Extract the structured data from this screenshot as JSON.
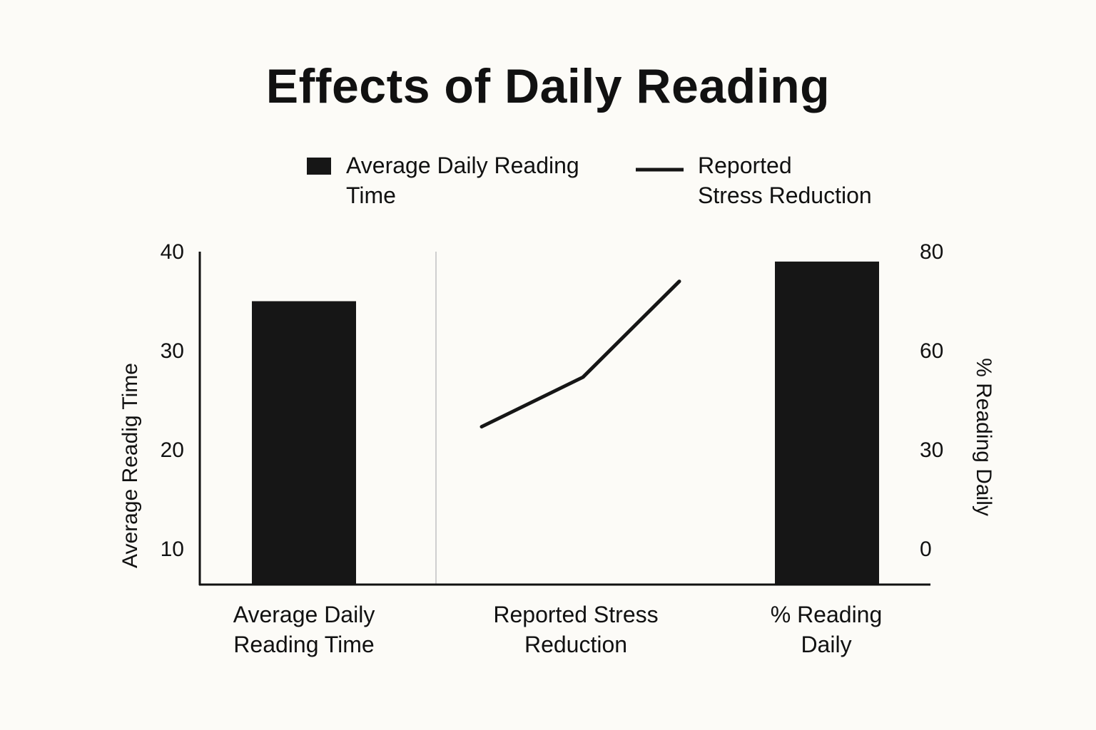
{
  "chart_data": {
    "type": "bar+line",
    "title": "Effects of Daily Reading",
    "legend": [
      {
        "label": "Average Daily Reading Time",
        "line1": "Average Daily Reading",
        "line2": "Time",
        "mark": "bar"
      },
      {
        "label": "Reported Stress Reduction",
        "line1": "Reported",
        "line2": "Stress Reduction",
        "mark": "line"
      }
    ],
    "legend_placement": "top-center",
    "categories": [
      {
        "line1": "Average Daily",
        "line2": "Reading Time"
      },
      {
        "line1": "Reported Stress",
        "line2": "Reduction"
      },
      {
        "line1": "% Reading",
        "line2": "Daily"
      }
    ],
    "left_axis": {
      "label": "Average Readig Time",
      "ticks": [
        "40",
        "30",
        "20",
        "10"
      ],
      "tick_values": [
        40,
        30,
        20,
        10
      ]
    },
    "right_axis": {
      "label": "% Reading Daily",
      "ticks": [
        "80",
        "60",
        "30",
        "0"
      ],
      "tick_values": [
        80,
        60,
        30,
        0
      ]
    },
    "bars": [
      {
        "category": "Average Daily Reading Time",
        "axis": "left",
        "value": 35
      },
      {
        "category": "% Reading Daily",
        "axis": "right",
        "value": 78
      }
    ],
    "line_series": {
      "name": "Reported Stress Reduction",
      "axis": "right",
      "values": [
        37,
        52,
        74
      ]
    },
    "colors": {
      "bar": "#161616",
      "line": "#161616",
      "divider": "#cfcfcf",
      "background": "#fcfbf7"
    }
  }
}
